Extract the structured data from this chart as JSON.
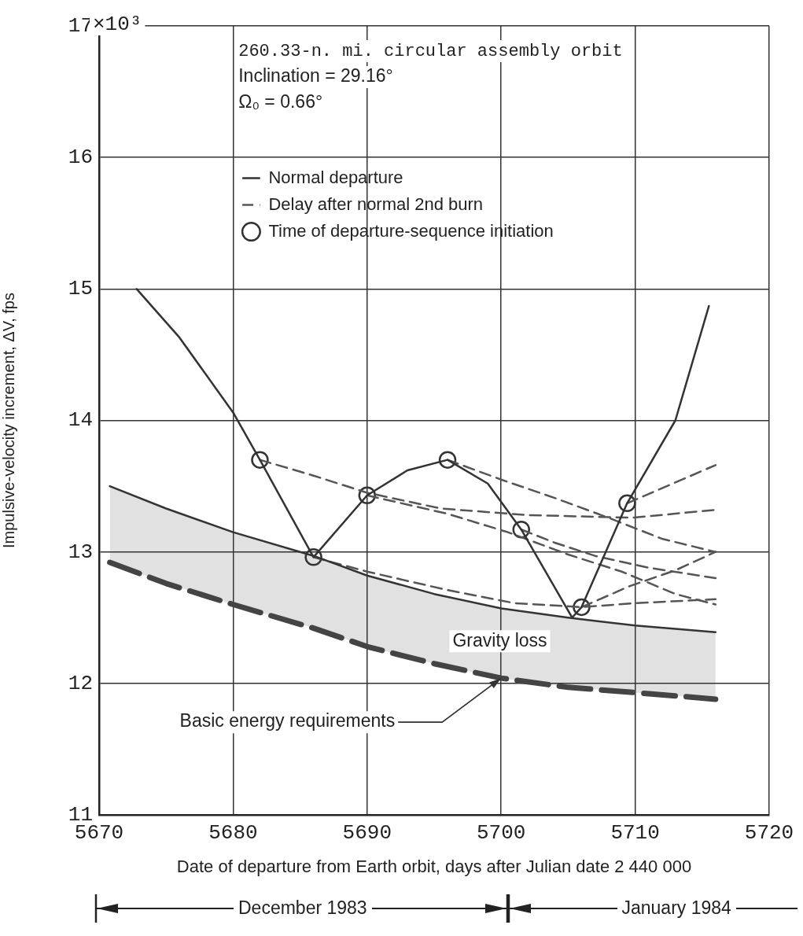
{
  "chart_data": {
    "type": "line",
    "xlabel": "Date of departure from Earth orbit, days after Julian date 2 440 000",
    "ylabel": "Impulsive-velocity increment, ΔV, fps",
    "xlim": [
      5670,
      5720
    ],
    "xticks": [
      5670,
      5680,
      5690,
      5700,
      5710,
      5720
    ],
    "ylim": [
      11,
      17
    ],
    "yticks": [
      11,
      12,
      13,
      14,
      15,
      16,
      17
    ],
    "grid": true,
    "legend": "top",
    "series": [
      {
        "line_style": "dashed",
        "color": "#444444",
        "x": [
          5670.8,
          5675,
          5680,
          5686,
          5690,
          5695,
          5700,
          5705,
          5710,
          5716
        ],
        "values": [
          12.92,
          12.76,
          12.6,
          12.42,
          12.28,
          12.15,
          12.04,
          11.97,
          11.93,
          11.88
        ],
        "lower": [
          12.92,
          12.76,
          12.6,
          12.42,
          12.28,
          12.15,
          12.04,
          11.97,
          11.93,
          11.88
        ],
        "upper": [
          13.5,
          13.33,
          13.15,
          12.97,
          12.82,
          12.68,
          12.57,
          12.5,
          12.44,
          12.39
        ]
      },
      {
        "line_style": "solid",
        "color": "#333333",
        "x": [
          5670.8,
          5675,
          5680,
          5686,
          5690,
          5695,
          5700,
          5705,
          5710,
          5716
        ],
        "values": [
          13.5,
          13.33,
          13.15,
          12.97,
          12.82,
          12.68,
          12.57,
          12.5,
          12.44,
          12.39
        ]
      },
      {
        "name": "Normal departure",
        "line_style": "solid",
        "color": "#333333",
        "x": [
          5672.8,
          5676,
          5680,
          5682,
          5686,
          5690,
          5693,
          5696,
          5699,
          5701.5,
          5705.3,
          5706,
          5709.4,
          5713,
          5715.5
        ],
        "values": [
          15.0,
          14.63,
          14.06,
          13.7,
          12.96,
          13.43,
          13.62,
          13.7,
          13.52,
          13.17,
          12.5,
          12.58,
          13.37,
          14.0,
          14.87
        ]
      },
      {
        "name": "Delay after normal 2nd burn",
        "line_style": "dashed",
        "color": "#555555",
        "x": [
          5682,
          5686,
          5690,
          5695.5,
          5702,
          5709.8,
          5716
        ],
        "values": [
          13.7,
          13.58,
          13.45,
          13.33,
          13.28,
          13.26,
          13.32
        ]
      },
      {
        "line_style": "dashed",
        "color": "#555555",
        "x": [
          5690,
          5696,
          5700.5,
          5705,
          5709,
          5713,
          5716
        ],
        "values": [
          13.43,
          13.29,
          13.15,
          12.98,
          12.85,
          12.68,
          12.6
        ]
      },
      {
        "line_style": "dashed",
        "color": "#555555",
        "x": [
          5696,
          5700,
          5704,
          5708,
          5712,
          5716
        ],
        "values": [
          13.7,
          13.55,
          13.41,
          13.26,
          13.1,
          13.0
        ]
      },
      {
        "line_style": "dashed",
        "color": "#555555",
        "x": [
          5701.5,
          5704,
          5707,
          5711,
          5716
        ],
        "values": [
          13.17,
          13.07,
          12.97,
          12.88,
          12.8
        ]
      },
      {
        "line_style": "dashed",
        "color": "#555555",
        "x": [
          5686,
          5690,
          5696,
          5701,
          5706,
          5710,
          5716
        ],
        "values": [
          12.96,
          12.85,
          12.71,
          12.61,
          12.58,
          12.61,
          12.64
        ]
      },
      {
        "line_style": "dashed",
        "color": "#555555",
        "x": [
          5706,
          5709.6,
          5713,
          5716
        ],
        "values": [
          12.58,
          12.74,
          12.86,
          13.0
        ]
      },
      {
        "line_style": "dashed",
        "color": "#555555",
        "x": [
          5709.4,
          5716
        ],
        "values": [
          13.37,
          13.66
        ]
      },
      {
        "type": "scatter",
        "name": "Time of departure-sequence initiation",
        "marker": "circle",
        "color": "#333333",
        "x": [
          5682,
          5686,
          5690,
          5696,
          5701.5,
          5706,
          5709.4
        ],
        "values": [
          13.7,
          12.96,
          13.43,
          13.7,
          13.17,
          12.58,
          13.37
        ]
      }
    ],
    "annotations": [
      "260.33-n. mi. circular assembly orbit",
      "Inclination = 29.16°",
      "Ω₀ = 0.66°",
      "December 1983",
      "January 1984",
      "Gravity loss",
      "×10³",
      {
        "text": "Basic energy requirements",
        "x": 5700,
        "y": 12.04
      }
    ]
  }
}
